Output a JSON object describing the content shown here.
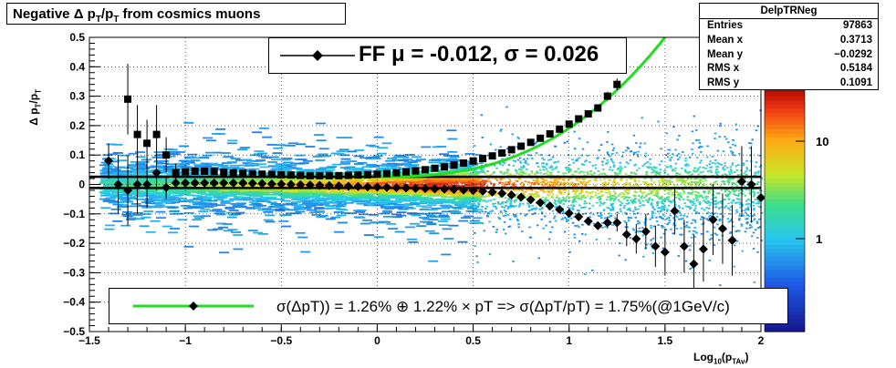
{
  "title": {
    "main": "Negative Δ p",
    "sub1": "T",
    "mid": "/p",
    "sub2": "T",
    "tail": " from cosmics muons"
  },
  "stats": {
    "name": "DelpTRNeg",
    "rows": [
      {
        "label": "Entries",
        "value": "97863"
      },
      {
        "label": "Mean x",
        "value": "0.3713"
      },
      {
        "label": "Mean y",
        "value": "−0.0292"
      },
      {
        "label": "RMS x",
        "value": "0.5184"
      },
      {
        "label": "RMS y",
        "value": "0.1091"
      }
    ]
  },
  "legend_top": {
    "text": "FF μ = -0.012, σ =   0.026"
  },
  "legend_bottom": {
    "text": "σ(ΔpT)) =  1.26% ⊕  1.22% × pT => σ(ΔpT/pT) =  1.75%(@1GeV/c)"
  },
  "axes": {
    "xlabel_main": "Log",
    "xlabel_sub": "10",
    "xlabel_tail": "(p",
    "xlabel_sub2": "TAv",
    "xlabel_end": ")",
    "ylabel_main": "Δ p",
    "ylabel_sub1": "T",
    "ylabel_mid": "/p",
    "ylabel_sub2": "T"
  },
  "colors": {
    "fit_curve": "#22dd22",
    "markers": "#000000"
  },
  "chart_data": {
    "type": "heatmap",
    "xlim": [
      -1.5,
      2.0
    ],
    "ylim": [
      -0.5,
      0.5
    ],
    "x_ticks": [
      "−1.5",
      "−1",
      "−0.5",
      "0",
      "0.5",
      "1",
      "1.5",
      "2"
    ],
    "y_ticks": [
      "−0.5",
      "−0.4",
      "−0.3",
      "−0.2",
      "−0.1",
      "0",
      "0.1",
      "0.2",
      "0.3",
      "0.4",
      "0.5"
    ],
    "z_scale": "log",
    "z_ticks": [
      "1",
      "10"
    ],
    "grid": true,
    "reference_lines_y": [
      0.026,
      -0.012
    ],
    "series": [
      {
        "marker": "square",
        "x": [
          -1.3,
          -1.25,
          -1.2,
          -1.15,
          -1.1,
          -1.05,
          -1.0,
          -0.95,
          -0.9,
          -0.85,
          -0.8,
          -0.75,
          -0.7,
          -0.65,
          -0.6,
          -0.55,
          -0.5,
          -0.45,
          -0.4,
          -0.35,
          -0.3,
          -0.25,
          -0.2,
          -0.15,
          -0.1,
          -0.05,
          0.0,
          0.05,
          0.1,
          0.15,
          0.2,
          0.25,
          0.3,
          0.35,
          0.4,
          0.45,
          0.5,
          0.55,
          0.6,
          0.65,
          0.7,
          0.75,
          0.8,
          0.85,
          0.9,
          0.95,
          1.0,
          1.05,
          1.1,
          1.15,
          1.2,
          1.25
        ],
        "y": [
          0.29,
          0.17,
          0.14,
          0.17,
          0.1,
          0.04,
          0.043,
          0.045,
          0.045,
          0.044,
          0.042,
          0.04,
          0.038,
          0.036,
          0.035,
          0.034,
          0.033,
          0.032,
          0.031,
          0.03,
          0.03,
          0.03,
          0.03,
          0.031,
          0.032,
          0.033,
          0.035,
          0.037,
          0.04,
          0.043,
          0.046,
          0.05,
          0.055,
          0.06,
          0.066,
          0.073,
          0.08,
          0.088,
          0.097,
          0.107,
          0.118,
          0.13,
          0.143,
          0.157,
          0.172,
          0.188,
          0.205,
          0.223,
          0.24,
          0.26,
          0.3,
          0.34
        ],
        "err": [
          0.12,
          0.1,
          0.08,
          0.1,
          0.06,
          0.03,
          0.01,
          0.01,
          0.008,
          0.006,
          0.005,
          0.004,
          0.004,
          0.003,
          0.003,
          0.003,
          0.002,
          0.002,
          0.002,
          0.002,
          0.002,
          0.002,
          0.002,
          0.002,
          0.002,
          0.002,
          0.002,
          0.002,
          0.002,
          0.002,
          0.002,
          0.002,
          0.002,
          0.002,
          0.003,
          0.003,
          0.003,
          0.003,
          0.004,
          0.004,
          0.005,
          0.005,
          0.006,
          0.006,
          0.007,
          0.008,
          0.009,
          0.01,
          0.01,
          0.012,
          0.015,
          0.02
        ]
      },
      {
        "marker": "diamond",
        "x": [
          -1.4,
          -1.35,
          -1.3,
          -1.25,
          -1.2,
          -1.15,
          -1.1,
          -1.05,
          -1.0,
          -0.95,
          -0.9,
          -0.85,
          -0.8,
          -0.75,
          -0.7,
          -0.65,
          -0.6,
          -0.55,
          -0.5,
          -0.45,
          -0.4,
          -0.35,
          -0.3,
          -0.25,
          -0.2,
          -0.15,
          -0.1,
          -0.05,
          0.0,
          0.05,
          0.1,
          0.15,
          0.2,
          0.25,
          0.3,
          0.35,
          0.4,
          0.45,
          0.5,
          0.55,
          0.6,
          0.65,
          0.7,
          0.75,
          0.8,
          0.85,
          0.9,
          0.95,
          1.0,
          1.05,
          1.1,
          1.15,
          1.2,
          1.25,
          1.3,
          1.35,
          1.4,
          1.45,
          1.5,
          1.55,
          1.6,
          1.65,
          1.7,
          1.75,
          1.8,
          1.85,
          1.9,
          1.95,
          2.0
        ],
        "y": [
          0.08,
          0.0,
          -0.02,
          0.0,
          0.0,
          0.04,
          -0.01,
          0.005,
          0.005,
          0.005,
          0.005,
          0.005,
          0.005,
          0.005,
          0.005,
          0.004,
          0.003,
          0.002,
          0.001,
          0.0,
          -0.001,
          -0.002,
          -0.003,
          -0.004,
          -0.005,
          -0.006,
          -0.007,
          -0.008,
          -0.009,
          -0.01,
          -0.011,
          -0.012,
          -0.013,
          -0.014,
          -0.015,
          -0.016,
          -0.017,
          -0.019,
          -0.021,
          -0.023,
          -0.026,
          -0.03,
          -0.036,
          -0.043,
          -0.052,
          -0.062,
          -0.073,
          -0.085,
          -0.098,
          -0.11,
          -0.125,
          -0.14,
          -0.13,
          -0.13,
          -0.17,
          -0.185,
          -0.16,
          -0.21,
          -0.23,
          -0.09,
          -0.21,
          -0.27,
          -0.22,
          -0.12,
          -0.15,
          -0.19,
          0.01,
          0.0,
          -0.045
        ],
        "err": [
          0.06,
          0.1,
          0.12,
          0.1,
          0.08,
          0.06,
          0.04,
          0.01,
          0.008,
          0.006,
          0.005,
          0.004,
          0.004,
          0.003,
          0.003,
          0.003,
          0.002,
          0.002,
          0.002,
          0.002,
          0.002,
          0.002,
          0.002,
          0.002,
          0.002,
          0.002,
          0.002,
          0.002,
          0.002,
          0.002,
          0.002,
          0.002,
          0.002,
          0.002,
          0.002,
          0.002,
          0.002,
          0.003,
          0.003,
          0.003,
          0.003,
          0.004,
          0.004,
          0.004,
          0.005,
          0.005,
          0.006,
          0.006,
          0.007,
          0.008,
          0.01,
          0.012,
          0.02,
          0.03,
          0.04,
          0.05,
          0.06,
          0.07,
          0.08,
          0.08,
          0.09,
          0.1,
          0.11,
          0.12,
          0.12,
          0.12,
          0.12,
          0.13,
          0.13
        ]
      }
    ],
    "fit_curve": {
      "x_start": 0.0,
      "x_end": 1.5,
      "y_start": 0.026,
      "y_end": 0.5
    }
  }
}
